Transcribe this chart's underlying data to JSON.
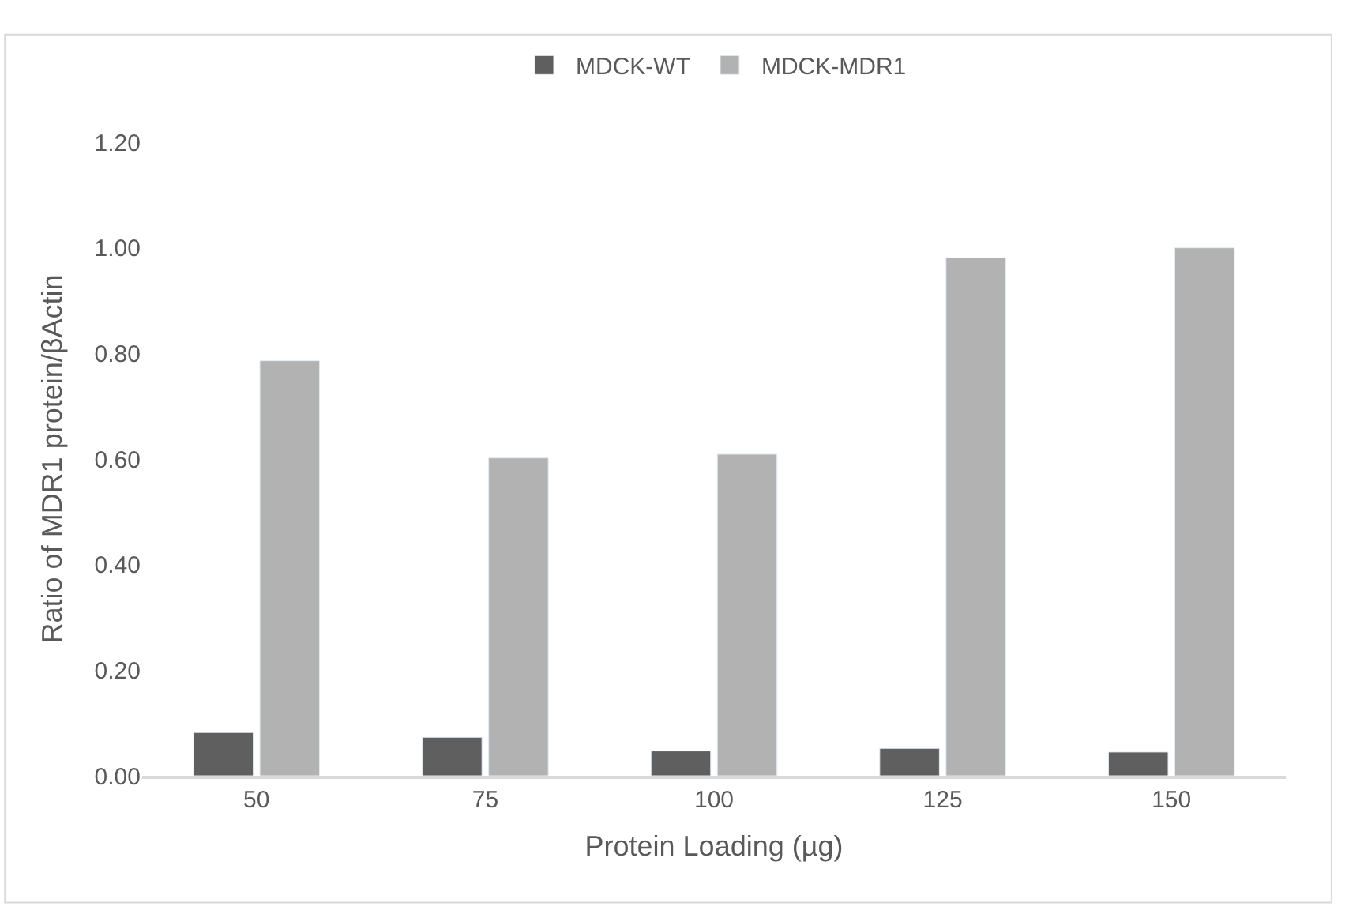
{
  "chart_data": {
    "type": "bar",
    "xlabel": "Protein Loading (µg)",
    "ylabel": "Ratio of MDR1 protein/βActin",
    "categories": [
      "50",
      "75",
      "100",
      "125",
      "150"
    ],
    "series": [
      {
        "name": "MDCK-WT",
        "color": "#5f5f5f",
        "values": [
          0.082,
          0.073,
          0.047,
          0.052,
          0.045
        ]
      },
      {
        "name": "MDCK-MDR1",
        "color": "#b2b2b2",
        "values": [
          0.786,
          0.602,
          0.609,
          0.981,
          1.0
        ]
      }
    ],
    "ylim": [
      0,
      1.2
    ],
    "yticks": [
      {
        "value": 0,
        "label": "0.00"
      },
      {
        "value": 0.2,
        "label": "0.20"
      },
      {
        "value": 0.4,
        "label": "0.40"
      },
      {
        "value": 0.6,
        "label": "0.60"
      },
      {
        "value": 0.8,
        "label": "0.80"
      },
      {
        "value": 1.0,
        "label": "1.00"
      },
      {
        "value": 1.2,
        "label": "1.20"
      }
    ],
    "legend": "top"
  }
}
